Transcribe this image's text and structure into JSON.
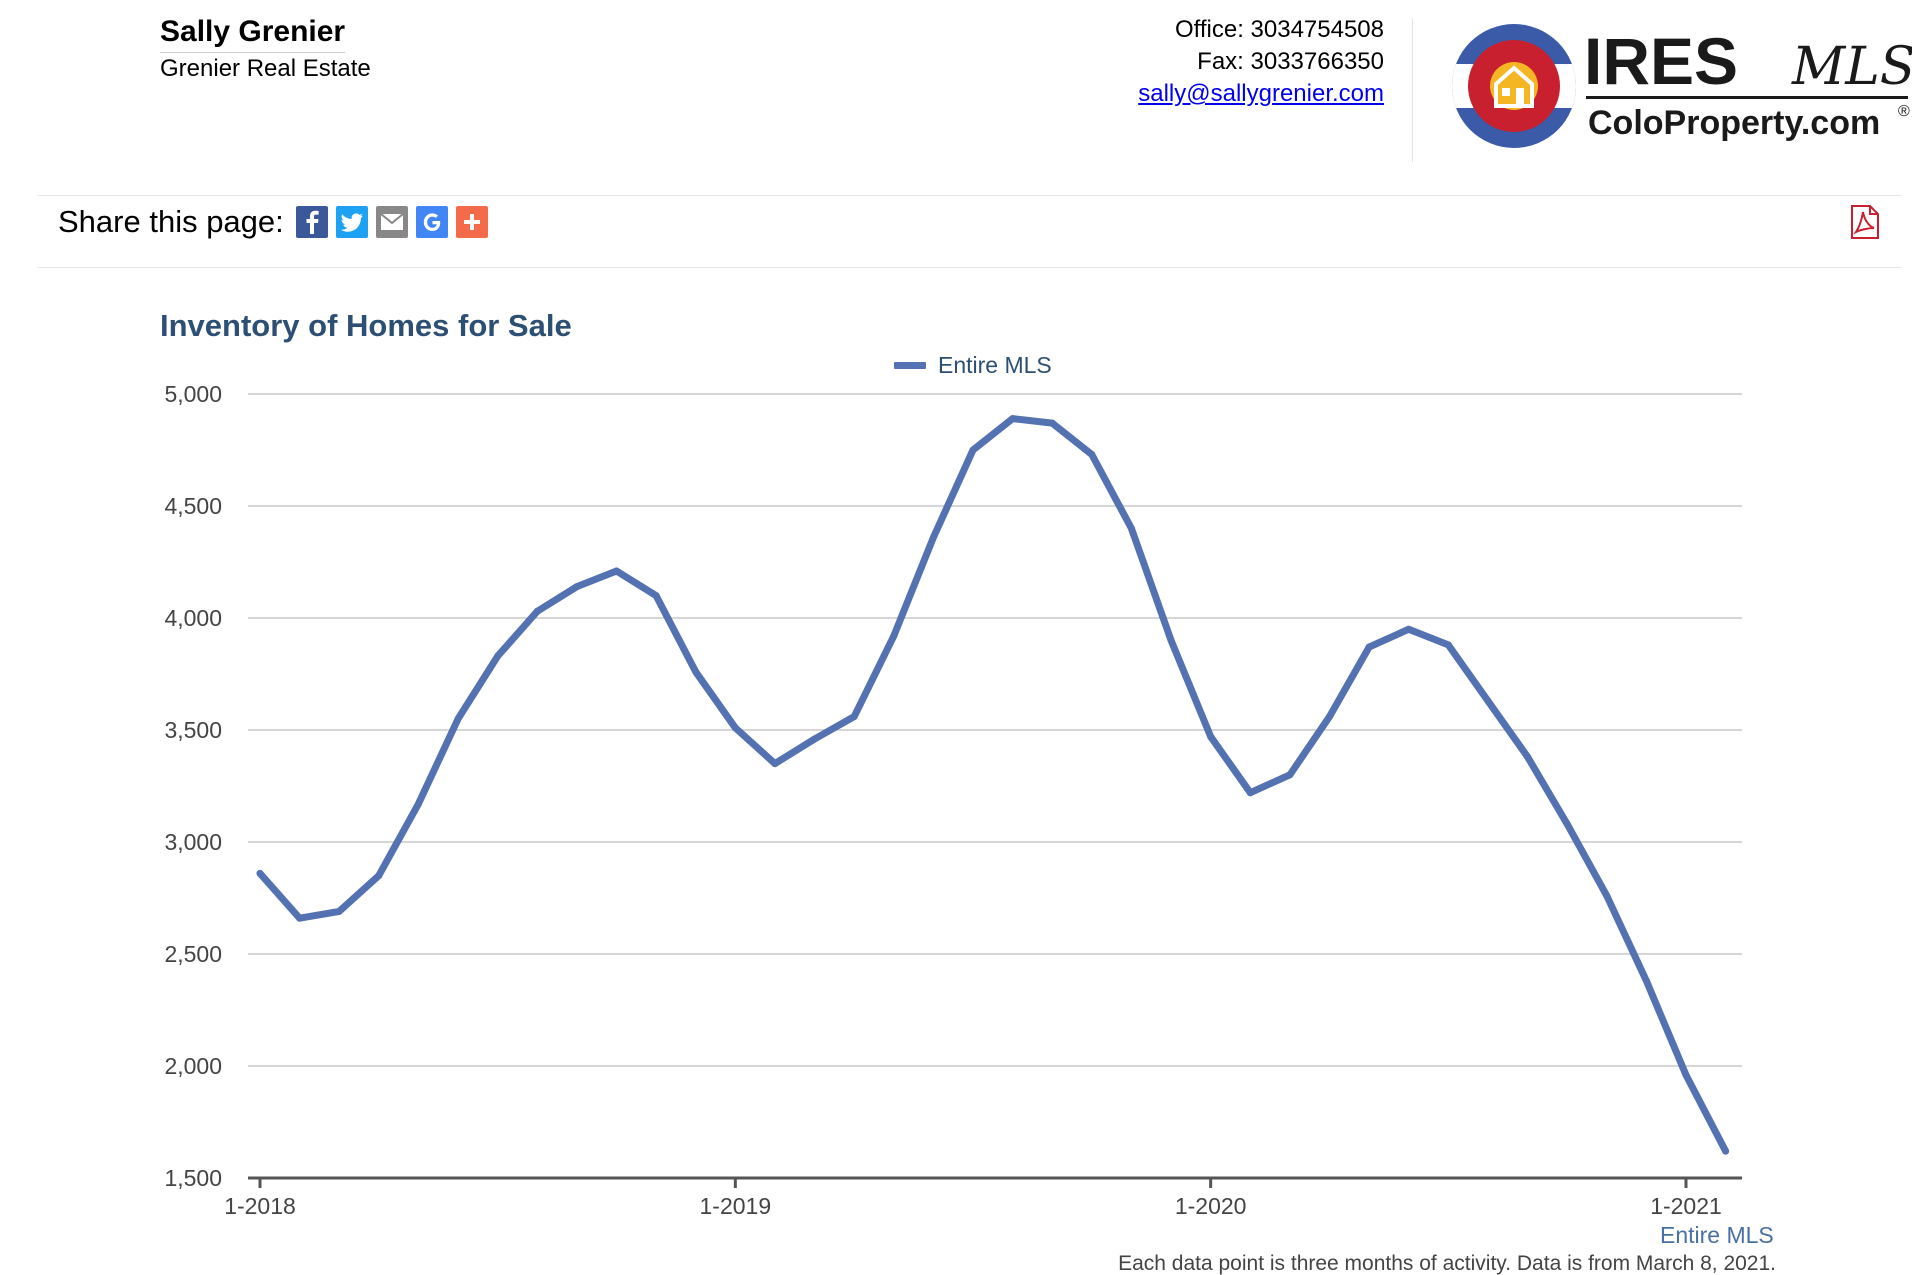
{
  "agent": {
    "name": "Sally Grenier",
    "company": "Grenier Real Estate"
  },
  "contact": {
    "office": "Office: 3034754508",
    "fax": "Fax: 3033766350",
    "email": "sally@sallygrenier.com"
  },
  "logo": {
    "brand": "IRES",
    "script": "MLS",
    "site": "ColoProperty.com",
    "registered": "®",
    "colors": {
      "blue": "#3b5ba8",
      "red": "#c8202f",
      "yellow": "#f5b623",
      "ink": "#1a1a1a"
    }
  },
  "share": {
    "label": "Share this page:",
    "buttons": [
      {
        "name": "facebook",
        "icon": "facebook-icon",
        "color": "#3b5998"
      },
      {
        "name": "twitter",
        "icon": "twitter-icon",
        "color": "#1da1f2"
      },
      {
        "name": "email",
        "icon": "email-icon",
        "color": "#888888"
      },
      {
        "name": "google",
        "icon": "google-icon",
        "color": "#4285f4"
      },
      {
        "name": "more",
        "icon": "plus-icon",
        "color": "#f36b4a"
      }
    ],
    "pdf_icon": "pdf-icon"
  },
  "chart_data": {
    "type": "line",
    "title": "Inventory of Homes for Sale",
    "legend_position": "top-center",
    "grid": true,
    "ylim": [
      1500,
      5000
    ],
    "y_ticks": [
      "1,500",
      "2,000",
      "2,500",
      "3,000",
      "3,500",
      "4,000",
      "4,500",
      "5,000"
    ],
    "x_ticks": [
      "1-2018",
      "1-2019",
      "1-2020",
      "1-2021"
    ],
    "series_color": "#5471b2",
    "series": [
      {
        "name": "Entire MLS",
        "x": [
          "1-2018",
          "2-2018",
          "3-2018",
          "4-2018",
          "5-2018",
          "6-2018",
          "7-2018",
          "8-2018",
          "9-2018",
          "10-2018",
          "11-2018",
          "12-2018",
          "1-2019",
          "2-2019",
          "3-2019",
          "4-2019",
          "5-2019",
          "6-2019",
          "7-2019",
          "8-2019",
          "9-2019",
          "10-2019",
          "11-2019",
          "12-2019",
          "1-2020",
          "2-2020",
          "3-2020",
          "4-2020",
          "5-2020",
          "6-2020",
          "7-2020",
          "8-2020",
          "9-2020",
          "10-2020",
          "11-2020",
          "12-2020",
          "1-2021",
          "2-2021"
        ],
        "values": [
          2860,
          2660,
          2690,
          2850,
          3170,
          3550,
          3830,
          4030,
          4140,
          4210,
          4100,
          3760,
          3510,
          3350,
          3460,
          3560,
          3920,
          4360,
          4750,
          4890,
          4870,
          4730,
          4400,
          3900,
          3470,
          3220,
          3300,
          3560,
          3870,
          3950,
          3880,
          3630,
          3380,
          3080,
          2760,
          2380,
          1960,
          1620
        ]
      }
    ],
    "footnote": "Each data point is three months of activity. Data is from March 8, 2021."
  }
}
